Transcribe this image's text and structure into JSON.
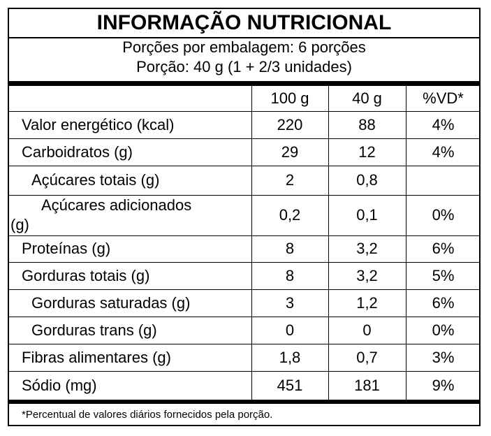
{
  "title": "INFORMAÇÃO NUTRICIONAL",
  "servings_per_package": "Porções por embalagem: 6 porções",
  "serving_size": "Porção: 40 g (1 + 2/3 unidades)",
  "columns": [
    "100 g",
    "40 g",
    "%VD*"
  ],
  "rows": [
    {
      "label": "Valor energético (kcal)",
      "per100": "220",
      "per40": "88",
      "dv": "4%"
    },
    {
      "label": "Carboidratos (g)",
      "per100": "29",
      "per40": "12",
      "dv": "4%"
    },
    {
      "label": "Açúcares  totais (g)",
      "per100": "2",
      "per40": "0,8",
      "dv": ""
    },
    {
      "label": "Açúcares  adicionados",
      "label_cont": "(g)",
      "per100": "0,2",
      "per40": "0,1",
      "dv": "0%"
    },
    {
      "label": "Proteínas (g)",
      "per100": "8",
      "per40": "3,2",
      "dv": "6%"
    },
    {
      "label": "Gorduras totais (g)",
      "per100": "8",
      "per40": "3,2",
      "dv": "5%"
    },
    {
      "label": "Gorduras  saturadas (g)",
      "per100": "3",
      "per40": "1,2",
      "dv": "6%"
    },
    {
      "label": "Gorduras  trans (g)",
      "per100": "0",
      "per40": "0",
      "dv": "0%"
    },
    {
      "label": "Fibras alimentares (g)",
      "per100": "1,8",
      "per40": "0,7",
      "dv": "3%"
    },
    {
      "label": "Sódio (mg)",
      "per100": "451",
      "per40": "181",
      "dv": "9%"
    }
  ],
  "footnote": "*Percentual de valores diários fornecidos pela porção."
}
